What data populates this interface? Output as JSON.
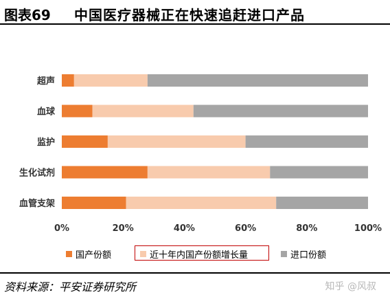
{
  "header": {
    "figure_label": "图表69",
    "title": "中国医疗器械正在快速追赶进口产品"
  },
  "chart_data": {
    "type": "bar",
    "orientation": "horizontal",
    "stacked": true,
    "percent": true,
    "categories": [
      "超声",
      "血球",
      "监护",
      "生化试剂",
      "血管支架"
    ],
    "series": [
      {
        "name": "国产份额",
        "values": [
          4,
          10,
          15,
          28,
          21
        ],
        "color": "#ED7D31"
      },
      {
        "name": "近十年内国产份额增长量",
        "values": [
          24,
          33,
          45,
          40,
          49
        ],
        "color": "#F8CBAD"
      },
      {
        "name": "进口份额",
        "values": [
          72,
          57,
          40,
          32,
          30
        ],
        "color": "#A5A5A5"
      }
    ],
    "xlim": [
      0,
      100
    ],
    "x_ticks": [
      "0%",
      "20%",
      "40%",
      "60%",
      "80%",
      "100%"
    ],
    "legend_position": "bottom",
    "highlighted_legend_entry": "近十年内国产份额增长量",
    "grid": false
  },
  "footer": {
    "source": "资料来源：平安证券研究所",
    "watermark": "知乎 @风叔"
  }
}
